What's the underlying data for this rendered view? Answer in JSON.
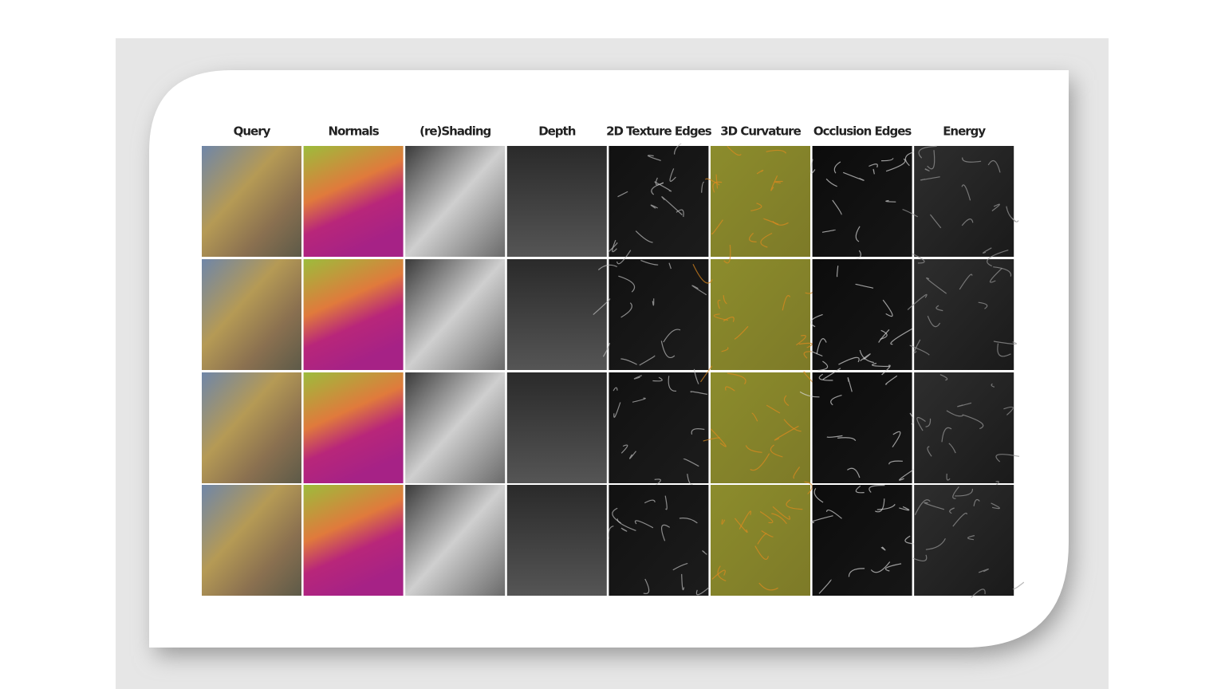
{
  "figure": {
    "columns": [
      "Query",
      "Normals",
      "(re)Shading",
      "Depth",
      "2D Texture Edges",
      "3D Curvature",
      "Occlusion Edges",
      "Energy"
    ]
  }
}
